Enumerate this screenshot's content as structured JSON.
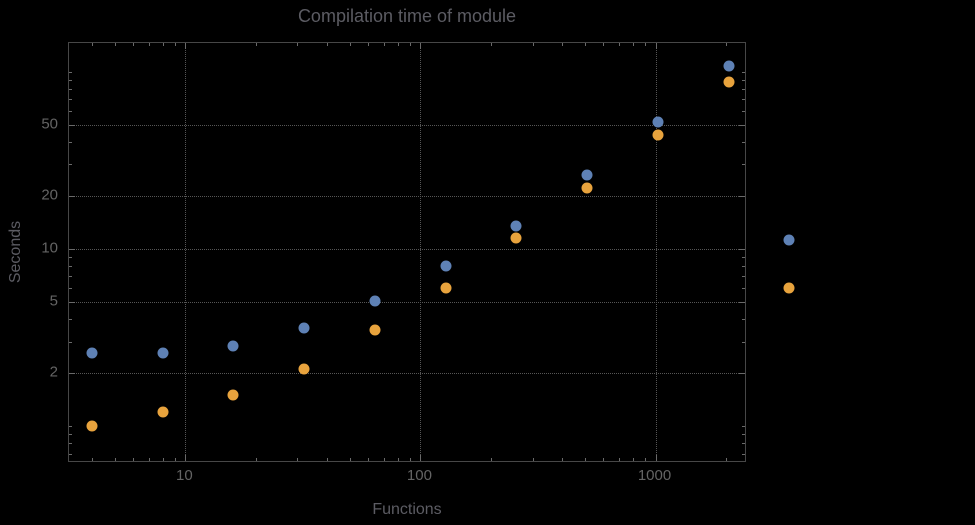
{
  "colors": {
    "background": "#000000",
    "frame": "#474747",
    "grid": "#565656",
    "tick": "#6a6a6a",
    "title_text": "#5c5c63",
    "tick_label_text": "#646464",
    "axis_label_text": "#5c5c63"
  },
  "chart_data": {
    "type": "scatter",
    "title": "Compilation time of module",
    "xlabel": "Functions",
    "ylabel": "Seconds",
    "x_scale": "log",
    "y_scale": "log",
    "x_range": [
      3.2,
      2450
    ],
    "y_range": [
      0.62,
      145
    ],
    "x_ticks": [
      10,
      100,
      1000
    ],
    "y_ticks": [
      2,
      5,
      10,
      20,
      50
    ],
    "grid": "dotted",
    "legend_position": "right-outside",
    "series": [
      {
        "name": "series-blue",
        "color": "#5e81b5",
        "x": [
          4,
          8,
          16,
          32,
          64,
          128,
          256,
          512,
          1024,
          2048
        ],
        "y": [
          2.6,
          2.6,
          2.85,
          3.6,
          5.1,
          8.0,
          13.5,
          26,
          52,
          108
        ]
      },
      {
        "name": "series-orange",
        "color": "#e8a33d",
        "x": [
          4,
          8,
          16,
          32,
          64,
          128,
          256,
          512,
          1024,
          2048
        ],
        "y": [
          1.0,
          1.2,
          1.5,
          2.1,
          3.5,
          6.0,
          11.5,
          22,
          44,
          87
        ]
      }
    ],
    "legend": {
      "items": [
        {
          "name": "legend-item-blue",
          "color": "#5e81b5"
        },
        {
          "name": "legend-item-orange",
          "color": "#e8a33d"
        }
      ]
    }
  }
}
